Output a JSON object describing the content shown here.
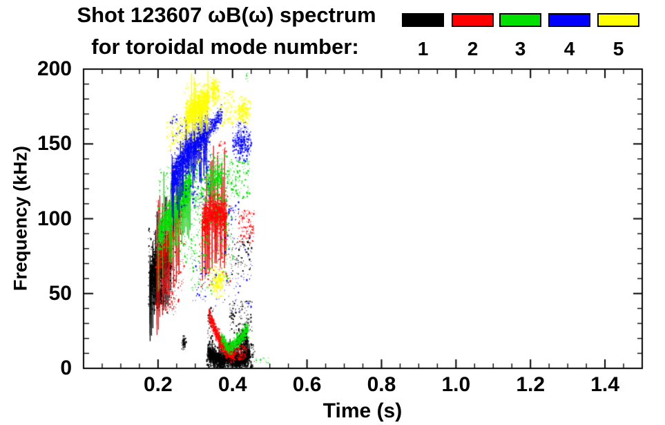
{
  "header": {
    "title_line1": "Shot 123607 ωB(ω) spectrum",
    "title_line2": "for toroidal mode number:"
  },
  "legend": {
    "items": [
      {
        "label": "1",
        "color": "#000000"
      },
      {
        "label": "2",
        "color": "#ff0000"
      },
      {
        "label": "3",
        "color": "#00e000"
      },
      {
        "label": "4",
        "color": "#0000ff"
      },
      {
        "label": "5",
        "color": "#ffff00"
      }
    ]
  },
  "chart_data": {
    "type": "scatter",
    "title": "Shot 123607 ωB(ω) spectrum for toroidal mode number: 1-5",
    "xlabel": "Time (s)",
    "ylabel": "Frequency (kHz)",
    "xlim": [
      0,
      1.5
    ],
    "ylim": [
      0,
      200
    ],
    "grid": false,
    "legend_position": "top",
    "x_major_ticks": [
      0.2,
      0.4,
      0.6,
      0.8,
      1.0,
      1.2,
      1.4
    ],
    "x_tick_labels": [
      "0.2",
      "0.4",
      "0.6",
      "0.8",
      "1.0",
      "1.2",
      "1.4"
    ],
    "x_minor_step": 0.05,
    "y_major_ticks": [
      0,
      50,
      100,
      150,
      200
    ],
    "y_tick_labels": [
      "0",
      "50",
      "100",
      "150",
      "200"
    ],
    "y_minor_step": 10,
    "axis_color": "#000000",
    "units": {
      "t": "s",
      "f": "kHz"
    },
    "series": [
      {
        "mode": 1,
        "name": "n=1",
        "color": "#000000",
        "clusters": [
          {
            "shape": "band",
            "path": [
              [
                0.176,
                60
              ],
              [
                0.192,
                67
              ],
              [
                0.212,
                73
              ],
              [
                0.233,
                80
              ]
            ],
            "hw": 11,
            "n": 1900,
            "streaks": 70,
            "streak_len": [
              8,
              38
            ],
            "streak_up": 0.25
          },
          {
            "shape": "scatter",
            "t": [
              0.172,
              0.244
            ],
            "f": [
              36,
              94
            ],
            "n": 260
          },
          {
            "shape": "blob",
            "t": [
              0.185,
              0.218
            ],
            "f": [
              40,
              56
            ],
            "n": 330
          },
          {
            "shape": "blob",
            "t": [
              0.263,
              0.274
            ],
            "f": [
              13,
              22
            ],
            "n": 70
          },
          {
            "shape": "band",
            "path": [
              [
                0.333,
                11
              ],
              [
                0.352,
                7
              ],
              [
                0.372,
                5
              ],
              [
                0.392,
                9
              ],
              [
                0.413,
                5
              ],
              [
                0.428,
                7
              ],
              [
                0.445,
                10
              ]
            ],
            "hw": 4,
            "n": 2300,
            "streaks": 40,
            "streak_len": [
              4,
              14
            ],
            "streak_up": 0.5
          },
          {
            "shape": "scatter",
            "t": [
              0.33,
              0.458
            ],
            "f": [
              1,
              17
            ],
            "n": 350
          },
          {
            "shape": "band",
            "path": [
              [
                0.408,
                16
              ],
              [
                0.425,
                19
              ],
              [
                0.44,
                22
              ]
            ],
            "hw": 6,
            "n": 330
          },
          {
            "shape": "scatter",
            "t": [
              0.332,
              0.347
            ],
            "f": [
              6,
              42
            ],
            "n": 70
          },
          {
            "shape": "scatter",
            "t": [
              0.39,
              0.452
            ],
            "f": [
              24,
              46
            ],
            "n": 110
          },
          {
            "shape": "scatter",
            "t": [
              0.395,
              0.45
            ],
            "f": [
              60,
              92
            ],
            "n": 80
          }
        ]
      },
      {
        "mode": 2,
        "name": "n=2",
        "color": "#ff0000",
        "clusters": [
          {
            "shape": "band",
            "path": [
              [
                0.196,
                68
              ],
              [
                0.21,
                79
              ],
              [
                0.226,
                88
              ],
              [
                0.246,
                98
              ],
              [
                0.263,
                107
              ]
            ],
            "hw": 7,
            "n": 650,
            "streaks": 45,
            "streak_len": [
              10,
              45
            ],
            "streak_up": 0.2
          },
          {
            "shape": "scatter",
            "t": [
              0.19,
              0.27
            ],
            "f": [
              40,
              112
            ],
            "n": 170
          },
          {
            "shape": "scatter",
            "t": [
              0.213,
              0.248
            ],
            "f": [
              38,
              58
            ],
            "n": 60
          },
          {
            "shape": "band",
            "path": [
              [
                0.317,
                97
              ],
              [
                0.34,
                104
              ],
              [
                0.36,
                106
              ],
              [
                0.383,
                102
              ]
            ],
            "hw": 9,
            "n": 1000,
            "streaks": 55,
            "streak_len": [
              10,
              42
            ],
            "streak_up": 0.3
          },
          {
            "shape": "scatter",
            "t": [
              0.31,
              0.393
            ],
            "f": [
              55,
              122
            ],
            "n": 220
          },
          {
            "shape": "band",
            "path": [
              [
                0.335,
                36
              ],
              [
                0.35,
                27
              ],
              [
                0.366,
                18
              ],
              [
                0.385,
                12
              ],
              [
                0.402,
                9
              ]
            ],
            "hw": 4,
            "n": 850
          },
          {
            "shape": "scatter",
            "t": [
              0.4,
              0.437
            ],
            "f": [
              6,
              16
            ],
            "n": 130
          },
          {
            "shape": "scatter",
            "t": [
              0.415,
              0.457
            ],
            "f": [
              84,
              106
            ],
            "n": 110
          },
          {
            "shape": "scatter",
            "t": [
              0.358,
              0.383
            ],
            "f": [
              144,
              153
            ],
            "n": 22
          }
        ]
      },
      {
        "mode": 3,
        "name": "n=3",
        "color": "#00e000",
        "clusters": [
          {
            "shape": "band",
            "path": [
              [
                0.2,
                90
              ],
              [
                0.22,
                99
              ],
              [
                0.242,
                107
              ],
              [
                0.263,
                116
              ],
              [
                0.287,
                125
              ]
            ],
            "hw": 8,
            "n": 1400,
            "streaks": 50,
            "streak_len": [
              8,
              35
            ],
            "streak_up": 0.2
          },
          {
            "shape": "scatter",
            "t": [
              0.195,
              0.302
            ],
            "f": [
              70,
              136
            ],
            "n": 260
          },
          {
            "shape": "scatter",
            "t": [
              0.29,
              0.327
            ],
            "f": [
              106,
              140
            ],
            "n": 130
          },
          {
            "shape": "band",
            "path": [
              [
                0.33,
                124
              ],
              [
                0.35,
                128
              ],
              [
                0.372,
                130
              ]
            ],
            "hw": 8,
            "n": 320
          },
          {
            "shape": "scatter",
            "t": [
              0.325,
              0.385
            ],
            "f": [
              110,
              144
            ],
            "n": 170
          },
          {
            "shape": "scatter",
            "t": [
              0.385,
              0.447
            ],
            "f": [
              114,
              140
            ],
            "n": 140
          },
          {
            "shape": "scatter",
            "t": [
              0.285,
              0.345
            ],
            "f": [
              50,
              110
            ],
            "n": 130
          },
          {
            "shape": "scatter",
            "t": [
              0.35,
              0.4
            ],
            "f": [
              58,
              115
            ],
            "n": 110
          },
          {
            "shape": "band",
            "path": [
              [
                0.368,
                21
              ],
              [
                0.386,
                14
              ],
              [
                0.406,
                17
              ],
              [
                0.425,
                22
              ],
              [
                0.441,
                27
              ]
            ],
            "hw": 3.5,
            "n": 650
          },
          {
            "shape": "scatter",
            "t": [
              0.455,
              0.497
            ],
            "f": [
              3,
              8
            ],
            "n": 12
          },
          {
            "shape": "scatter",
            "t": [
              0.433,
              0.443
            ],
            "f": [
              192,
              198
            ],
            "n": 8
          }
        ]
      },
      {
        "mode": 4,
        "name": "n=4",
        "color": "#0000ff",
        "clusters": [
          {
            "shape": "band",
            "path": [
              [
                0.236,
                126
              ],
              [
                0.256,
                136
              ],
              [
                0.274,
                144
              ],
              [
                0.292,
                150
              ],
              [
                0.312,
                155
              ],
              [
                0.332,
                160
              ]
            ],
            "hw": 9,
            "n": 1700,
            "streaks": 65,
            "streak_len": [
              8,
              32
            ],
            "streak_up": 0.2
          },
          {
            "shape": "scatter",
            "t": [
              0.23,
              0.34
            ],
            "f": [
              108,
              170
            ],
            "n": 300
          },
          {
            "shape": "band",
            "path": [
              [
                0.332,
                159
              ],
              [
                0.35,
                164
              ],
              [
                0.37,
                170
              ]
            ],
            "hw": 5,
            "n": 260
          },
          {
            "shape": "blob",
            "t": [
              0.398,
              0.449
            ],
            "f": [
              138,
              165
            ],
            "n": 340
          },
          {
            "shape": "scatter",
            "t": [
              0.292,
              0.327
            ],
            "f": [
              45,
              78
            ],
            "n": 35
          },
          {
            "shape": "scatter",
            "t": [
              0.352,
              0.452
            ],
            "f": [
              38,
              90
            ],
            "n": 70
          },
          {
            "shape": "scatter",
            "t": [
              0.385,
              0.415
            ],
            "f": [
              95,
              112
            ],
            "n": 25
          }
        ]
      },
      {
        "mode": 5,
        "name": "n=5",
        "color": "#ffff00",
        "clusters": [
          {
            "shape": "scatter",
            "t": [
              0.22,
              0.272
            ],
            "f": [
              145,
              168
            ],
            "n": 130
          },
          {
            "shape": "band",
            "path": [
              [
                0.273,
                167
              ],
              [
                0.295,
                174
              ],
              [
                0.315,
                177
              ],
              [
                0.334,
                180
              ]
            ],
            "hw": 8,
            "n": 1200,
            "streaks": 30,
            "streak_len": [
              6,
              24
            ],
            "streak_up": 0.3
          },
          {
            "shape": "scatter",
            "t": [
              0.268,
              0.34
            ],
            "f": [
              152,
              191
            ],
            "n": 220
          },
          {
            "shape": "blob",
            "t": [
              0.335,
              0.365
            ],
            "f": [
              176,
              195
            ],
            "n": 230
          },
          {
            "shape": "scatter",
            "t": [
              0.362,
              0.402
            ],
            "f": [
              162,
              186
            ],
            "n": 110
          },
          {
            "shape": "blob",
            "t": [
              0.405,
              0.449
            ],
            "f": [
              163,
              182
            ],
            "n": 260
          },
          {
            "shape": "blob",
            "t": [
              0.338,
              0.385
            ],
            "f": [
              48,
              68
            ],
            "n": 240
          },
          {
            "shape": "scatter",
            "t": [
              0.3,
              0.322
            ],
            "f": [
              137,
              152
            ],
            "n": 22
          }
        ]
      }
    ]
  }
}
